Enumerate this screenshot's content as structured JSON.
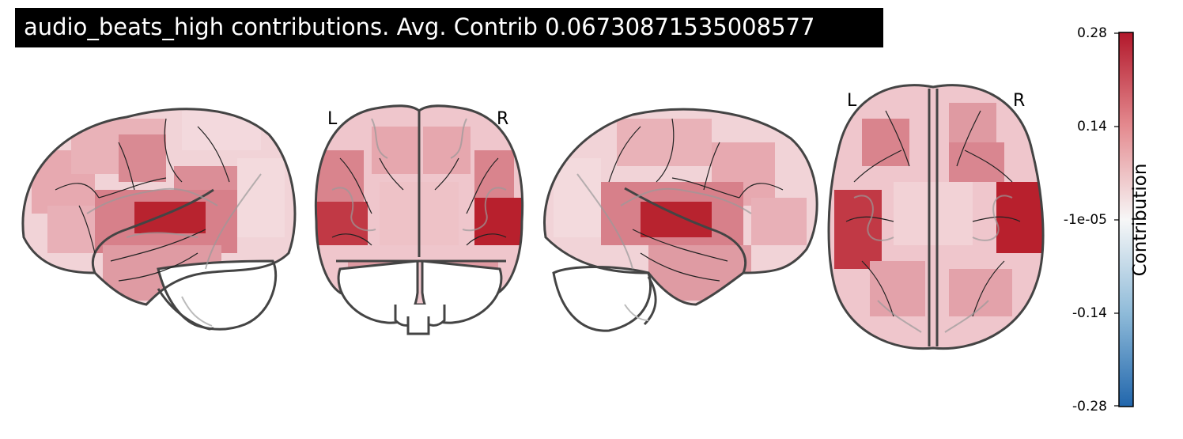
{
  "title": "audio_beats_high contributions. Avg. Contrib 0.06730871535008577",
  "views": [
    {
      "name": "left-sagittal"
    },
    {
      "name": "coronal",
      "left_label": "L",
      "right_label": "R"
    },
    {
      "name": "right-sagittal"
    },
    {
      "name": "axial",
      "left_label": "L",
      "right_label": "R"
    }
  ],
  "colorbar": {
    "label": "Contribution",
    "ticks": [
      "0.28",
      "0.14",
      "-1e-05",
      "-0.14",
      "-0.28"
    ],
    "colors": {
      "max": "#b2182b",
      "mid": "#f7f7f7",
      "min": "#2166ac"
    }
  },
  "colors": {
    "strong": "#b2182b",
    "medium": "#d6707a",
    "light": "#e8adb4",
    "pale": "#f3d6da",
    "outline": "#444444",
    "sulci": "#222222",
    "gyri_gray": "#9a9a9a"
  }
}
